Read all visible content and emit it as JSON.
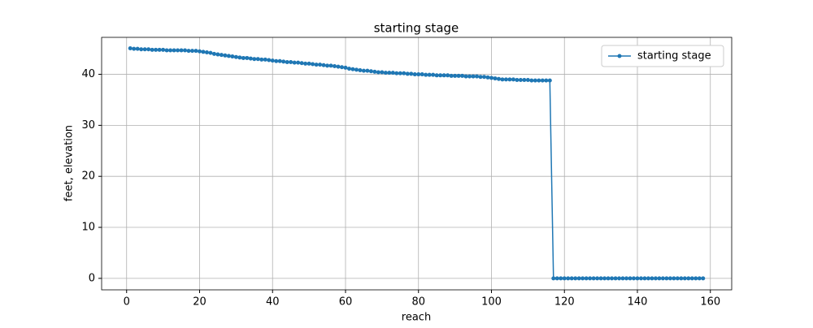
{
  "chart_data": {
    "type": "line",
    "title": "starting stage",
    "xlabel": "reach",
    "ylabel": "feet, elevation",
    "x": [
      1,
      2,
      3,
      4,
      5,
      6,
      7,
      8,
      9,
      10,
      11,
      12,
      13,
      14,
      15,
      16,
      17,
      18,
      19,
      20,
      21,
      22,
      23,
      24,
      25,
      26,
      27,
      28,
      29,
      30,
      31,
      32,
      33,
      34,
      35,
      36,
      37,
      38,
      39,
      40,
      41,
      42,
      43,
      44,
      45,
      46,
      47,
      48,
      49,
      50,
      51,
      52,
      53,
      54,
      55,
      56,
      57,
      58,
      59,
      60,
      61,
      62,
      63,
      64,
      65,
      66,
      67,
      68,
      69,
      70,
      71,
      72,
      73,
      74,
      75,
      76,
      77,
      78,
      79,
      80,
      81,
      82,
      83,
      84,
      85,
      86,
      87,
      88,
      89,
      90,
      91,
      92,
      93,
      94,
      95,
      96,
      97,
      98,
      99,
      100,
      101,
      102,
      103,
      104,
      105,
      106,
      107,
      108,
      109,
      110,
      111,
      112,
      113,
      114,
      115,
      116,
      117,
      118,
      119,
      120,
      121,
      122,
      123,
      124,
      125,
      126,
      127,
      128,
      129,
      130,
      131,
      132,
      133,
      134,
      135,
      136,
      137,
      138,
      139,
      140,
      141,
      142,
      143,
      144,
      145,
      146,
      147,
      148,
      149,
      150,
      151,
      152,
      153,
      154,
      155,
      156,
      157,
      158
    ],
    "series": [
      {
        "name": "starting stage",
        "color": "#1f77b4",
        "values": [
          45.1,
          45.0,
          45.0,
          44.9,
          44.9,
          44.9,
          44.8,
          44.8,
          44.8,
          44.8,
          44.7,
          44.7,
          44.7,
          44.7,
          44.7,
          44.7,
          44.6,
          44.6,
          44.6,
          44.5,
          44.4,
          44.3,
          44.2,
          44.0,
          43.9,
          43.8,
          43.7,
          43.6,
          43.5,
          43.4,
          43.3,
          43.2,
          43.2,
          43.1,
          43.0,
          43.0,
          42.9,
          42.9,
          42.8,
          42.7,
          42.6,
          42.6,
          42.5,
          42.4,
          42.4,
          42.3,
          42.3,
          42.2,
          42.1,
          42.1,
          42.0,
          41.9,
          41.9,
          41.8,
          41.7,
          41.7,
          41.6,
          41.5,
          41.4,
          41.3,
          41.1,
          41.0,
          40.9,
          40.8,
          40.7,
          40.7,
          40.6,
          40.5,
          40.4,
          40.4,
          40.3,
          40.3,
          40.3,
          40.2,
          40.2,
          40.2,
          40.1,
          40.1,
          40.0,
          40.0,
          40.0,
          39.9,
          39.9,
          39.9,
          39.8,
          39.8,
          39.8,
          39.8,
          39.7,
          39.7,
          39.7,
          39.7,
          39.6,
          39.6,
          39.6,
          39.6,
          39.5,
          39.5,
          39.4,
          39.3,
          39.2,
          39.1,
          39.0,
          39.0,
          39.0,
          39.0,
          38.9,
          38.9,
          38.9,
          38.9,
          38.8,
          38.8,
          38.8,
          38.8,
          38.8,
          38.8,
          0,
          0,
          0,
          0,
          0,
          0,
          0,
          0,
          0,
          0,
          0,
          0,
          0,
          0,
          0,
          0,
          0,
          0,
          0,
          0,
          0,
          0,
          0,
          0,
          0,
          0,
          0,
          0,
          0,
          0,
          0,
          0,
          0,
          0,
          0,
          0,
          0,
          0,
          0,
          0,
          0,
          0
        ]
      }
    ],
    "xlim": [
      -6.85,
      165.85
    ],
    "xticks": [
      0,
      20,
      40,
      60,
      80,
      100,
      120,
      140,
      160
    ],
    "ylim": [
      -2.25,
      47.25
    ],
    "yticks": [
      0,
      10,
      20,
      30,
      40
    ],
    "grid": true,
    "legend": "upper right"
  }
}
